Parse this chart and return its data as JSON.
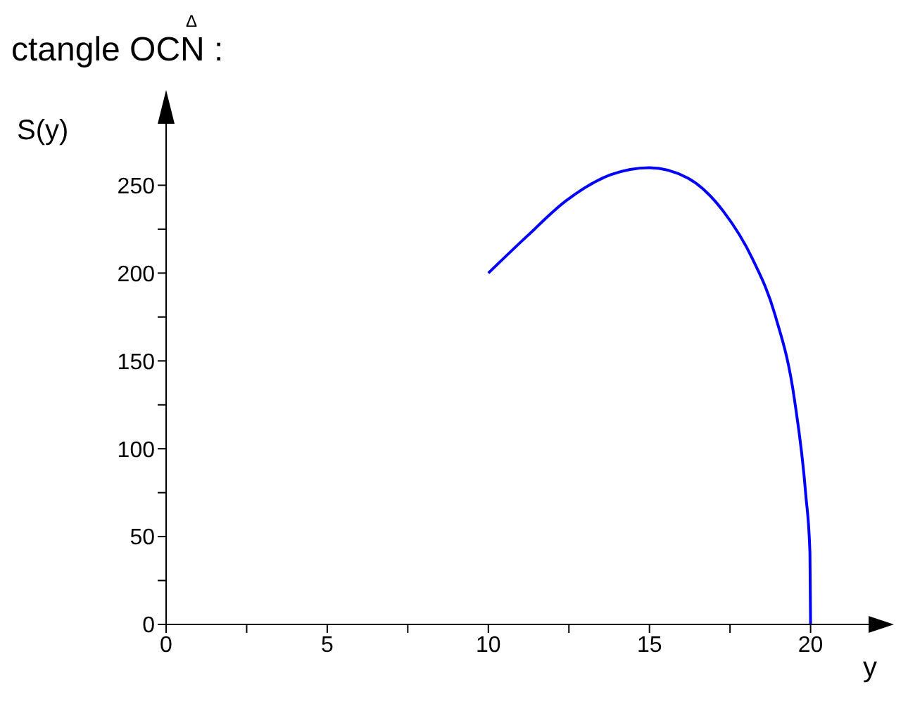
{
  "chart_data": {
    "type": "line",
    "title": "ctangle OCN :",
    "annotations": [
      "Δ"
    ],
    "xlabel": "y",
    "ylabel": "S(y)",
    "x": [
      10,
      11.2,
      12.4,
      13.8,
      15,
      16.2,
      17.3,
      18.2,
      18.9,
      19.5,
      19.85,
      19.98,
      20
    ],
    "series": [
      {
        "color": "#0000ff",
        "values": [
          200,
          221,
          241,
          256,
          260,
          254,
          235,
          208,
          176,
          128,
          74,
          41,
          0
        ]
      }
    ],
    "xlim": [
      0,
      21.8
    ],
    "ylim": [
      0,
      285
    ],
    "xticks": [
      0,
      {
        "value": 2.5,
        "label": null
      },
      5,
      {
        "value": 7.5,
        "label": null
      },
      10,
      {
        "value": 12.5,
        "label": null
      },
      15,
      {
        "value": 17.5,
        "label": null
      },
      20
    ],
    "yticks": [
      0,
      {
        "value": 25,
        "label": null
      },
      50,
      {
        "value": 75,
        "label": null
      },
      100,
      {
        "value": 125,
        "label": null
      },
      150,
      {
        "value": 175,
        "label": null
      },
      200,
      {
        "value": 225,
        "label": null
      },
      250
    ],
    "grid": false,
    "legend": false,
    "marker": "none",
    "line_style": "solid"
  }
}
